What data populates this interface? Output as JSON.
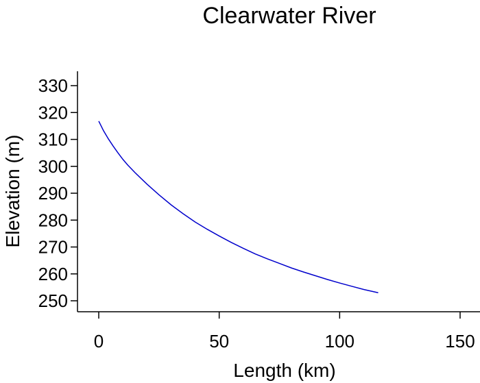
{
  "chart_data": {
    "type": "line",
    "title": "Clearwater River",
    "xlabel": "Length (km)",
    "ylabel": "Elevation (m)",
    "xlim": [
      -8,
      150
    ],
    "ylim": [
      246,
      334
    ],
    "xticks": [
      0,
      50,
      100,
      150
    ],
    "yticks": [
      250,
      260,
      270,
      280,
      290,
      300,
      310,
      320,
      330
    ],
    "grid": false,
    "series": [
      {
        "color": "#0000cc",
        "x": [
          0,
          2,
          4,
          6,
          8,
          10,
          12,
          15,
          20,
          25,
          30,
          35,
          40,
          45,
          50,
          55,
          60,
          65,
          70,
          75,
          80,
          85,
          90,
          95,
          100,
          105,
          110,
          116
        ],
        "y": [
          316.8,
          313.2,
          310.2,
          307.5,
          305.0,
          302.6,
          300.5,
          297.7,
          293.4,
          289.4,
          285.7,
          282.4,
          279.3,
          276.6,
          274.1,
          271.7,
          269.5,
          267.4,
          265.6,
          263.9,
          262.2,
          260.7,
          259.3,
          257.9,
          256.6,
          255.4,
          254.2,
          253.0
        ]
      }
    ]
  }
}
